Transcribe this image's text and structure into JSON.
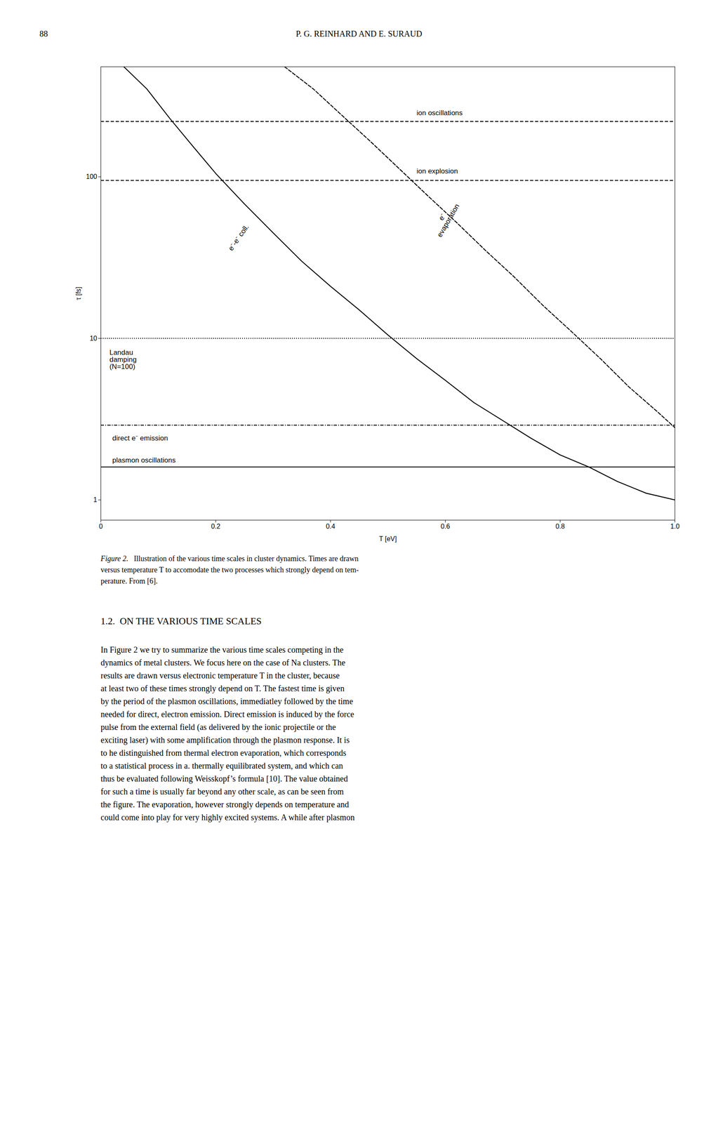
{
  "page": {
    "page_number": "88",
    "header": "P. G. REINHARD AND E. SURAUD",
    "caption_label": "Figure 2.",
    "caption": "   Illustration of the various time scales in cluster dynamics. Times are drawn\nversus temperature T to accomodate the two processes which strongly depend on tem-\nperature. From [6].",
    "section_heading": "1.2.  ON THE VARIOUS TIME SCALES",
    "body_text": "In Figure 2 we try to summarize the various time scales competing in the\ndynamics of metal clusters. We focus here on the case of Na clusters. The\nresults are drawn versus electronic temperature T in the cluster, because\nat least two of these times strongly depend on T. The fastest time is given\nby the period of the plasmon oscillations, immediatley followed by the time\nneeded for direct, electron emission. Direct emission is induced by the force\npulse from the external field (as delivered by the ionic projectile or the\nexciting laser) with some amplification through the plasmon response. It is\nto he distinguished from thermal electron evaporation, which corresponds\nto a statistical process in a. thermally equilibrated system, and which can\nthus be evaluated following Weisskopf’s formula [10]. The value obtained\nfor such a time is usually far beyond any other scale, as can be seen from\nthe figure. The evaporation, however strongly depends on temperature and\ncould come into play for very highly excited systems. A while after plasmon"
  },
  "chart_data": {
    "type": "line",
    "log": "y",
    "xlabel": "T [eV]",
    "ylabel": "τ [fs]",
    "xlim": [
      0.0,
      1.0
    ],
    "ylim": [
      0.75,
      480
    ],
    "xticks": [
      0,
      0.2,
      0.4,
      0.6,
      0.8,
      {
        "value": 1.0,
        "label": "1.0"
      }
    ],
    "yticks": [
      1,
      10,
      100
    ],
    "horizontal_lines": [
      {
        "y": 220,
        "line_style": "dashed",
        "label": "ion oscillations",
        "label_x": 0.55,
        "label_y": 240
      },
      {
        "y": 95,
        "line_style": "dashed",
        "label": "ion explosion",
        "label_x": 0.55,
        "label_y": 105
      },
      {
        "y": 10,
        "line_style": "dotted",
        "label": "Landau\ndamping\n(N=100)",
        "label_x": 0.015,
        "label_y": 8.5
      },
      {
        "y": 2.9,
        "line_style": "dashdot",
        "label": "direct e⁻ emission",
        "label_x": 0.02,
        "label_y": 2.5
      },
      {
        "y": 1.6,
        "line_style": "solid",
        "label": "plasmon oscillations",
        "label_x": 0.02,
        "label_y": 1.7
      }
    ],
    "series": [
      {
        "x": [
          0.04,
          0.08,
          0.12,
          0.16,
          0.2,
          0.25,
          0.3,
          0.35,
          0.4,
          0.45,
          0.5,
          0.55,
          0.6,
          0.65,
          0.7,
          0.75,
          0.8,
          0.85,
          0.9,
          0.95,
          1.0
        ],
        "values": [
          480,
          350,
          230,
          155,
          105,
          68,
          45,
          30,
          21,
          15,
          10.5,
          7.5,
          5.5,
          4.0,
          3.1,
          2.4,
          1.9,
          1.6,
          1.3,
          1.1,
          1.0
        ],
        "line_style": "solid",
        "label": "e⁻-e⁻ coll.",
        "label_x": 0.24,
        "label_y": 42
      },
      {
        "x": [
          0.32,
          0.37,
          0.42,
          0.47,
          0.52,
          0.57,
          0.62,
          0.67,
          0.72,
          0.77,
          0.82,
          0.87,
          0.92,
          0.97,
          1.0
        ],
        "values": [
          480,
          350,
          240,
          165,
          112,
          76,
          52,
          35,
          24,
          16,
          11,
          7.5,
          5.0,
          3.5,
          2.8
        ],
        "line_style": "dashed",
        "label": "e⁻\nevaporation",
        "label_x": 0.6,
        "label_y": 55
      }
    ]
  }
}
